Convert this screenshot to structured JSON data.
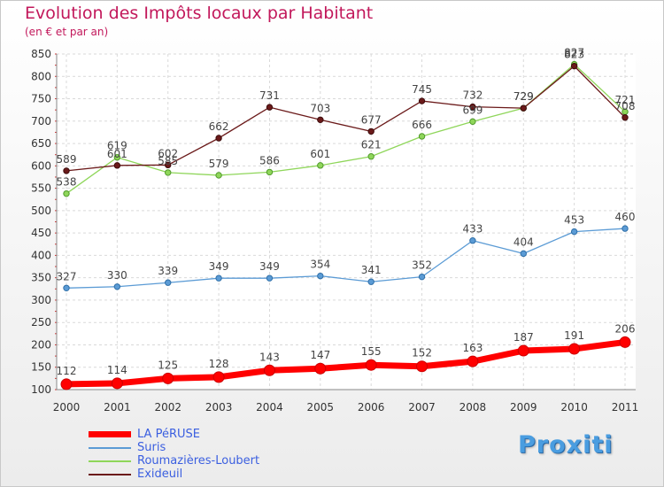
{
  "title": "Evolution des Impôts locaux par Habitant",
  "subtitle": "(en € et par an)",
  "logo_text": "Proxiti",
  "chart_data": {
    "type": "line",
    "title": "Evolution des Impôts locaux par Habitant",
    "subtitle": "(en € et par an)",
    "categories": [
      "2000",
      "2001",
      "2002",
      "2003",
      "2004",
      "2005",
      "2006",
      "2007",
      "2008",
      "2009",
      "2010",
      "2011"
    ],
    "ylim": [
      100,
      850
    ],
    "yticks": [
      100,
      150,
      200,
      250,
      300,
      350,
      400,
      450,
      500,
      550,
      600,
      650,
      700,
      750,
      800,
      850
    ],
    "grid": true,
    "legend_position": "bottom-left",
    "series": [
      {
        "name": "LA PéRUSE",
        "color": "#ff0000",
        "values": [
          112,
          114,
          125,
          128,
          143,
          147,
          155,
          152,
          163,
          187,
          191,
          206
        ]
      },
      {
        "name": "Suris",
        "color": "#5b9bd5",
        "values": [
          327,
          330,
          339,
          349,
          349,
          354,
          341,
          352,
          433,
          404,
          453,
          460
        ]
      },
      {
        "name": "Roumazières-Loubert",
        "color": "#8fd65a",
        "values": [
          538,
          619,
          585,
          579,
          586,
          601,
          621,
          666,
          699,
          729,
          827,
          721
        ]
      },
      {
        "name": "Exideuil",
        "color": "#6b1a1a",
        "values": [
          589,
          601,
          602,
          662,
          731,
          703,
          677,
          745,
          732,
          729,
          823,
          708
        ]
      }
    ]
  }
}
